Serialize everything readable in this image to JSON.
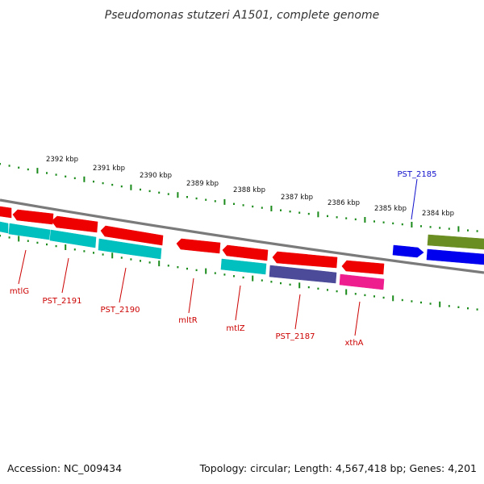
{
  "title": "Pseudomonas stutzeri A1501, complete genome",
  "footer": {
    "accession": "Accession: NC_009434",
    "topology": "Topology: circular; Length: 4,567,418 bp; Genes: 4,201"
  },
  "colors": {
    "backbone": "#7a7a7a",
    "tick": "#1a8a1a",
    "label_forward": "#1010cc",
    "label_reverse": "#cc0000"
  },
  "ticks": [
    "2392 kbp",
    "2391 kbp",
    "2390 kbp",
    "2389 kbp",
    "2388 kbp",
    "2387 kbp",
    "2386 kbp",
    "2385 kbp",
    "2384 kbp"
  ],
  "genes": [
    {
      "name": "PST_2185",
      "strand": "forward",
      "color": "#0000ee"
    },
    {
      "name": "",
      "strand": "forward",
      "color": "#6b8e23"
    },
    {
      "name": "mtlG",
      "strand": "reverse",
      "color": "#ee0000"
    },
    {
      "name": "PST_2191",
      "strand": "reverse",
      "color": "#ee0000"
    },
    {
      "name": "PST_2190",
      "strand": "reverse",
      "color": "#ee0000"
    },
    {
      "name": "mltR",
      "strand": "reverse",
      "color": "#ee0000"
    },
    {
      "name": "mtlZ",
      "strand": "reverse",
      "color": "#ee0000"
    },
    {
      "name": "PST_2187",
      "strand": "reverse",
      "color": "#ee0000"
    },
    {
      "name": "xthA",
      "strand": "reverse",
      "color": "#ee0000"
    }
  ],
  "features": [
    {
      "gene": "mtlG",
      "color": "#00bfbf"
    },
    {
      "gene": "PST_2191",
      "color": "#00bfbf"
    },
    {
      "gene": "PST_2190",
      "color": "#00bfbf"
    },
    {
      "gene": "mtlZ",
      "color": "#00bfbf"
    },
    {
      "gene": "PST_2187",
      "color": "#4b4b99"
    },
    {
      "gene": "xthA",
      "color": "#ee1e8e"
    },
    {
      "gene": "PST_2185",
      "color": "#0000ee"
    }
  ]
}
